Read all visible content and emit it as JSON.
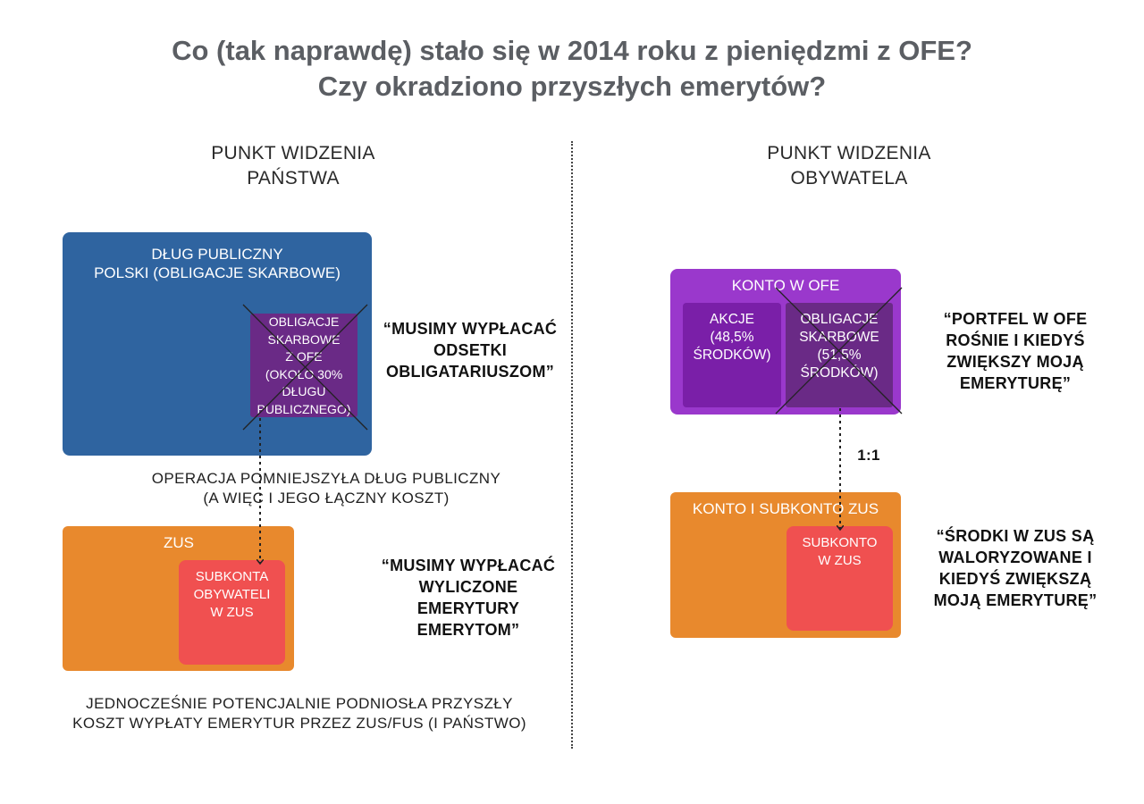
{
  "title": {
    "line1": "Co (tak naprawdę) stało się w 2014 roku z pieniędzmi z OFE?",
    "line2": "Czy okradziono przyszłych emerytów?"
  },
  "left": {
    "heading_line1": "PUNKT WIDZENIA",
    "heading_line2": "PAŃSTWA",
    "debt_box": {
      "line1": "DŁUG PUBLICZNY",
      "line2": "POLSKI (OBLIGACJE SKARBOWE)"
    },
    "ofe_bonds": [
      "OBLIGACJE",
      "SKARBOWE",
      "Z OFE",
      "(OKOŁO 30%",
      "DŁUGU",
      "PUBLICZNEGO)"
    ],
    "quote1": [
      "“MUSIMY WYPŁACAĆ",
      "ODSETKI",
      "OBLIGATARIUSZOM”"
    ],
    "note1": [
      "OPERACJA POMNIEJSZYŁA DŁUG PUBLICZNY",
      "(A WIĘC I JEGO ŁĄCZNY KOSZT)"
    ],
    "zus_label": "ZUS",
    "subaccounts": [
      "SUBKONTA",
      "OBYWATELI",
      "W ZUS"
    ],
    "quote2": [
      "“MUSIMY WYPŁACAĆ",
      "WYLICZONE",
      "EMERYTURY",
      "EMERYTOM”"
    ],
    "note2": [
      "JEDNOCZEŚNIE POTENCJALNIE PODNIOSŁA PRZYSZŁY",
      "KOSZT WYPŁATY EMERYTUR PRZEZ ZUS/FUS (I PAŃSTWO)"
    ]
  },
  "right": {
    "heading_line1": "PUNKT WIDZENIA",
    "heading_line2": "OBYWATELA",
    "ofe_account": "KONTO W OFE",
    "stocks": [
      "AKCJE",
      "(48,5%",
      "ŚRODKÓW)"
    ],
    "bonds": [
      "OBLIGACJE",
      "SKARBOWE",
      "(51,5%",
      "ŚRODKÓW)"
    ],
    "quote1": [
      "“PORTFEL W OFE",
      "ROŚNIE I KIEDYŚ",
      "ZWIĘKSZY MOJĄ",
      "EMERYTURĘ”"
    ],
    "ratio": "1:1",
    "zus_account": "KONTO I SUBKONTO ZUS",
    "subaccount": [
      "SUBKONTO",
      "W ZUS"
    ],
    "quote2": [
      "“ŚRODKI W ZUS SĄ",
      "WALORYZOWANE I",
      "KIEDYŚ ZWIĘKSZĄ",
      "MOJĄ EMERYTURĘ”"
    ]
  }
}
